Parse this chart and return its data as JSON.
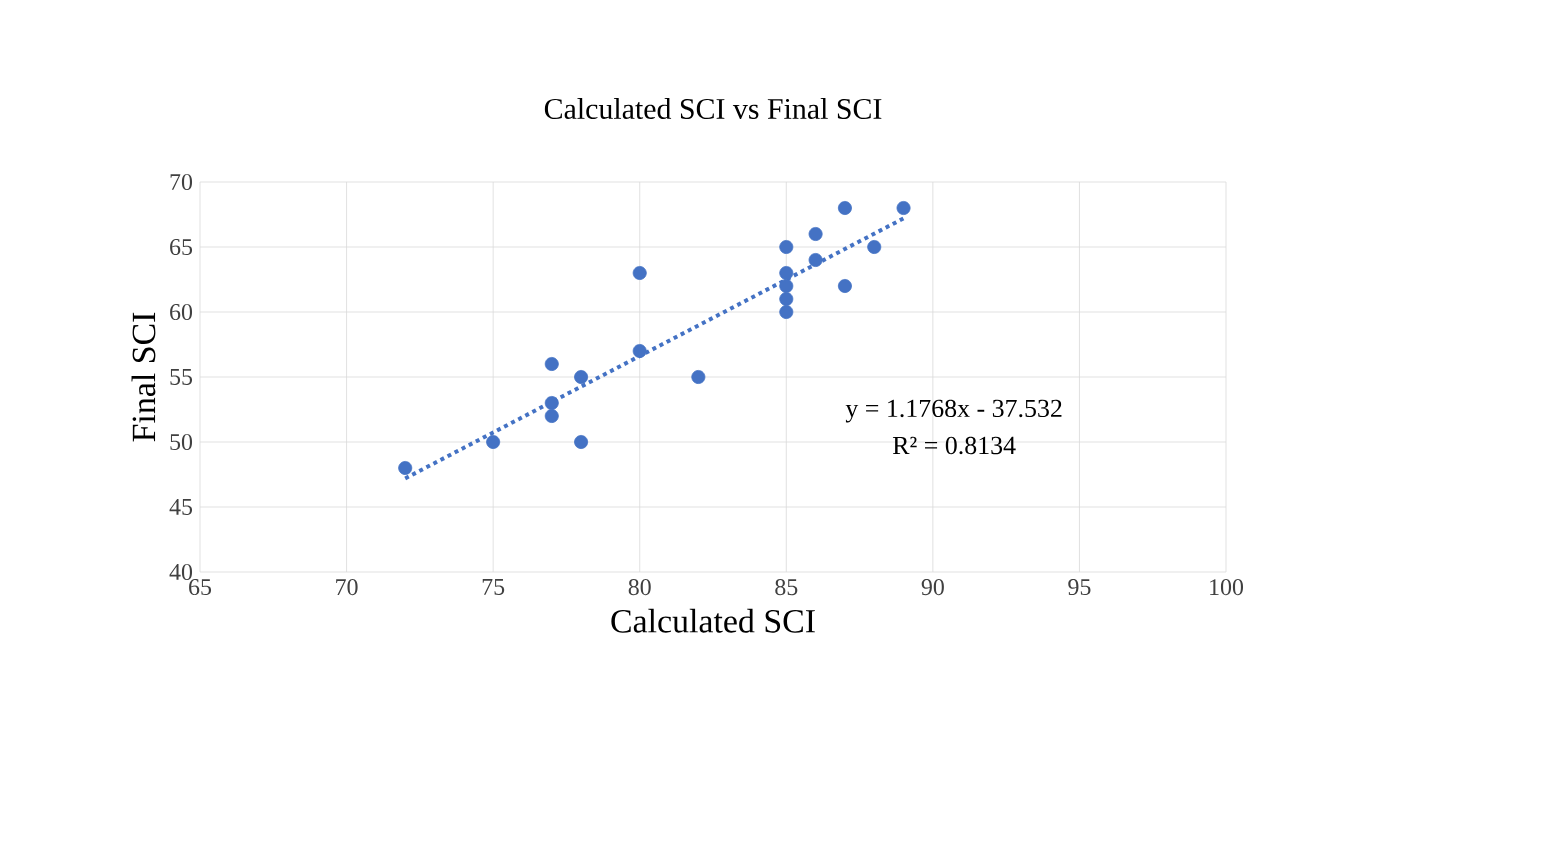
{
  "chart_data": {
    "type": "scatter",
    "title": "Calculated SCI vs Final SCI",
    "xlabel": "Calculated SCI",
    "ylabel": "Final SCI",
    "series": [
      {
        "color": "#4472c4",
        "marker": "circle",
        "x": [
          72,
          75,
          77,
          77,
          77,
          78,
          78,
          80,
          80,
          82,
          85,
          85,
          85,
          85,
          85,
          86,
          86,
          87,
          87,
          88,
          89
        ],
        "values": [
          48,
          50,
          52,
          53,
          56,
          55,
          50,
          63,
          57,
          55,
          60,
          61,
          62,
          63,
          65,
          64,
          66,
          68,
          62,
          65,
          68
        ]
      },
      {
        "type": "line",
        "color": "#4472c4",
        "line_style": "dotted",
        "marker": "none",
        "x": [
          72,
          89
        ],
        "values": [
          47.2,
          67.2
        ]
      }
    ],
    "annotations": [
      "y = 1.1768x - 37.532",
      "R² = 0.8134"
    ],
    "xlim": [
      65,
      100
    ],
    "xticks": [
      65,
      70,
      75,
      80,
      85,
      90,
      95,
      100
    ],
    "ylim": [
      40,
      70
    ],
    "yticks": [
      40,
      45,
      50,
      55,
      60,
      65,
      70
    ],
    "grid": true
  }
}
